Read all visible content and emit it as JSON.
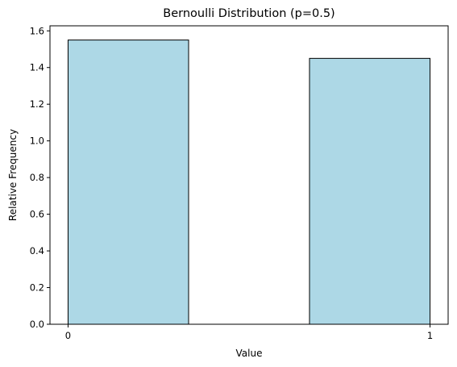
{
  "chart_data": {
    "type": "bar",
    "title": "Bernoulli Distribution (p=0.5)",
    "xlabel": "Value",
    "ylabel": "Relative Frequency",
    "bins": [
      {
        "x_start": 0.0,
        "x_end": 0.333,
        "value": 1.55
      },
      {
        "x_start": 0.667,
        "x_end": 1.0,
        "value": 1.45
      }
    ],
    "xlim": [
      -0.05,
      1.05
    ],
    "ylim": [
      0,
      1.6275
    ],
    "x_ticks": [
      0,
      1
    ],
    "x_tick_labels": [
      "0",
      "1"
    ],
    "y_ticks": [
      0,
      0.2,
      0.4,
      0.6,
      0.8,
      1.0,
      1.2,
      1.4,
      1.6
    ],
    "y_tick_labels": [
      "0.0",
      "0.2",
      "0.4",
      "0.6",
      "0.8",
      "1.0",
      "1.2",
      "1.4",
      "1.6"
    ],
    "grid": false,
    "bar_color": "#add8e6",
    "edge_color": "#000000"
  }
}
